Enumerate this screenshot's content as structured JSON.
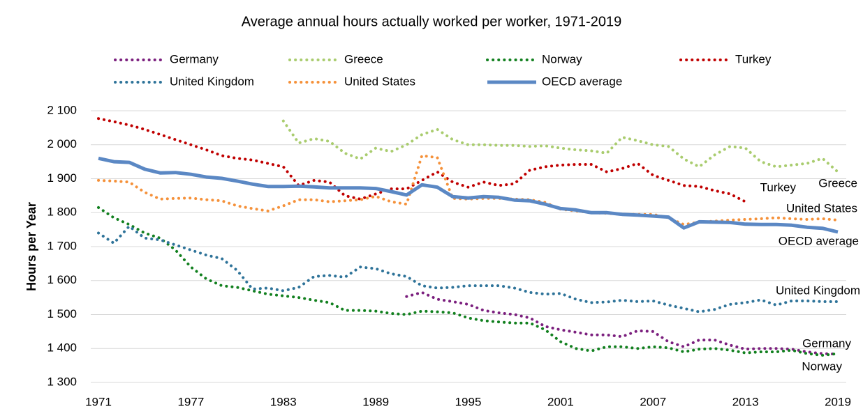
{
  "chart_data": {
    "type": "line",
    "title": "Average annual hours actually worked per worker, 1971-2019",
    "y_label": "Hours per Year",
    "x": [
      1971,
      1972,
      1973,
      1974,
      1975,
      1976,
      1977,
      1978,
      1979,
      1980,
      1981,
      1982,
      1983,
      1984,
      1985,
      1986,
      1987,
      1988,
      1989,
      1990,
      1991,
      1992,
      1993,
      1994,
      1995,
      1996,
      1997,
      1998,
      1999,
      2000,
      2001,
      2002,
      2003,
      2004,
      2005,
      2006,
      2007,
      2008,
      2009,
      2010,
      2011,
      2012,
      2013,
      2014,
      2015,
      2016,
      2017,
      2018,
      2019
    ],
    "xlim": [
      1971,
      2019
    ],
    "xticks": [
      1971,
      1977,
      1983,
      1989,
      1995,
      2001,
      2007,
      2013,
      2019
    ],
    "ylim": [
      1300,
      2100
    ],
    "yticks": [
      {
        "value": 1300,
        "label": "1 300"
      },
      {
        "value": 1400,
        "label": "1 400"
      },
      {
        "value": 1500,
        "label": "1 500"
      },
      {
        "value": 1600,
        "label": "1 600"
      },
      {
        "value": 1700,
        "label": "1 700"
      },
      {
        "value": 1800,
        "label": "1 800"
      },
      {
        "value": 1900,
        "label": "1 900"
      },
      {
        "value": 2000,
        "label": "2 000"
      },
      {
        "value": 2100,
        "label": "2 100"
      }
    ],
    "grid": true,
    "legend": "top",
    "series": [
      {
        "name": "Germany",
        "color": "#7b1f7e",
        "style": "dotted",
        "values": [
          null,
          null,
          null,
          null,
          null,
          null,
          null,
          null,
          null,
          null,
          null,
          null,
          null,
          null,
          null,
          null,
          null,
          null,
          null,
          null,
          1553,
          1565,
          1545,
          1538,
          1530,
          1512,
          1505,
          1500,
          1490,
          1465,
          1455,
          1448,
          1440,
          1440,
          1435,
          1452,
          1450,
          1420,
          1405,
          1425,
          1425,
          1410,
          1398,
          1400,
          1400,
          1398,
          1390,
          1385,
          1383
        ]
      },
      {
        "name": "Greece",
        "color": "#a9cc6e",
        "style": "dotted",
        "values": [
          null,
          null,
          null,
          null,
          null,
          null,
          null,
          null,
          null,
          null,
          null,
          null,
          2070,
          2005,
          2018,
          2010,
          1975,
          1958,
          1990,
          1980,
          2000,
          2030,
          2045,
          2015,
          2000,
          2000,
          1998,
          1998,
          1995,
          1997,
          1990,
          1985,
          1982,
          1975,
          2022,
          2012,
          2000,
          1995,
          1958,
          1935,
          1970,
          1995,
          1990,
          1950,
          1935,
          1940,
          1945,
          1960,
          1920
        ]
      },
      {
        "name": "Norway",
        "color": "#12801f",
        "style": "dotted",
        "values": [
          1815,
          1785,
          1765,
          1740,
          1725,
          1690,
          1640,
          1605,
          1585,
          1580,
          1570,
          1560,
          1555,
          1550,
          1542,
          1535,
          1512,
          1512,
          1510,
          1503,
          1500,
          1510,
          1508,
          1505,
          1490,
          1482,
          1478,
          1475,
          1475,
          1455,
          1420,
          1400,
          1393,
          1405,
          1405,
          1400,
          1405,
          1402,
          1390,
          1398,
          1400,
          1395,
          1387,
          1390,
          1390,
          1395,
          1385,
          1380,
          1385
        ]
      },
      {
        "name": "Turkey",
        "color": "#c00000",
        "style": "dotted",
        "values": [
          2077,
          2068,
          2058,
          2045,
          2030,
          2015,
          2000,
          1985,
          1968,
          1960,
          1955,
          1945,
          1935,
          1880,
          1895,
          1890,
          1850,
          1840,
          1855,
          1870,
          1870,
          1895,
          1920,
          1890,
          1875,
          1890,
          1880,
          1885,
          1925,
          1935,
          1940,
          1942,
          1942,
          1920,
          1930,
          1945,
          1910,
          1895,
          1880,
          1877,
          1865,
          1855,
          1832,
          null,
          null,
          null,
          null,
          null,
          null
        ]
      },
      {
        "name": "United Kingdom",
        "color": "#2e7399",
        "style": "dotted",
        "values": [
          1740,
          1710,
          1760,
          1725,
          1720,
          1705,
          1690,
          1675,
          1665,
          1630,
          1575,
          1578,
          1570,
          1580,
          1612,
          1615,
          1610,
          1640,
          1635,
          1620,
          1612,
          1585,
          1578,
          1580,
          1585,
          1585,
          1585,
          1578,
          1565,
          1560,
          1562,
          1545,
          1535,
          1537,
          1542,
          1538,
          1540,
          1528,
          1518,
          1508,
          1515,
          1530,
          1535,
          1543,
          1528,
          1540,
          1540,
          1538,
          1538
        ]
      },
      {
        "name": "United States",
        "color": "#f5913a",
        "style": "dotted",
        "values": [
          1895,
          1893,
          1890,
          1860,
          1840,
          1842,
          1843,
          1838,
          1835,
          1820,
          1812,
          1805,
          1820,
          1838,
          1838,
          1832,
          1835,
          1838,
          1848,
          1832,
          1825,
          1968,
          1962,
          1842,
          1840,
          1842,
          1842,
          1840,
          1838,
          1830,
          1810,
          1805,
          1800,
          1798,
          1795,
          1795,
          1795,
          1785,
          1765,
          1772,
          1775,
          1778,
          1780,
          1782,
          1785,
          1782,
          1780,
          1782,
          1778
        ]
      },
      {
        "name": "OECD average",
        "color": "#5b88c4",
        "style": "solid",
        "values": [
          1960,
          1950,
          1948,
          1928,
          1917,
          1918,
          1913,
          1905,
          1901,
          1893,
          1884,
          1877,
          1877,
          1878,
          1876,
          1873,
          1873,
          1873,
          1871,
          1862,
          1852,
          1882,
          1875,
          1847,
          1843,
          1847,
          1845,
          1837,
          1835,
          1825,
          1812,
          1808,
          1800,
          1800,
          1795,
          1793,
          1790,
          1787,
          1755,
          1773,
          1772,
          1771,
          1766,
          1765,
          1765,
          1763,
          1757,
          1754,
          1743
        ]
      }
    ]
  }
}
